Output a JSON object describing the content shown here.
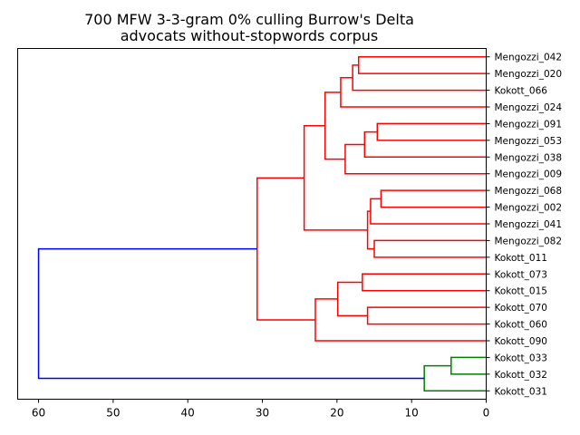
{
  "chart_data": {
    "type": "dendrogram",
    "title": "700 MFW 3-3-gram 0% culling Burrow's Delta",
    "subtitle": "advocats without-stopwords corpus",
    "xlabel": "",
    "ylabel": "",
    "x_range": [
      62.8,
      0
    ],
    "x_ticks": [
      60,
      50,
      40,
      30,
      20,
      10,
      0
    ],
    "leaf_order": [
      "Mengozzi_042",
      "Mengozzi_020",
      "Kokott_066",
      "Mengozzi_024",
      "Mengozzi_091",
      "Mengozzi_053",
      "Mengozzi_038",
      "Mengozzi_009",
      "Mengozzi_068",
      "Mengozzi_002",
      "Mengozzi_041",
      "Mengozzi_082",
      "Kokott_011",
      "Kokott_073",
      "Kokott_015",
      "Kokott_070",
      "Kokott_060",
      "Kokott_090",
      "Kokott_033",
      "Kokott_032",
      "Kokott_031"
    ],
    "merges": [
      {
        "id": "a",
        "left": "Mengozzi_042",
        "right": "Mengozzi_020",
        "distance": 17.1,
        "color": "red"
      },
      {
        "id": "b",
        "left": "a",
        "right": "Kokott_066",
        "distance": 17.9,
        "color": "red"
      },
      {
        "id": "c",
        "left": "b",
        "right": "Mengozzi_024",
        "distance": 19.5,
        "color": "red"
      },
      {
        "id": "d",
        "left": "Mengozzi_091",
        "right": "Mengozzi_053",
        "distance": 14.6,
        "color": "red"
      },
      {
        "id": "e",
        "left": "d",
        "right": "Mengozzi_038",
        "distance": 16.3,
        "color": "red"
      },
      {
        "id": "f",
        "left": "e",
        "right": "Mengozzi_009",
        "distance": 18.9,
        "color": "red"
      },
      {
        "id": "g",
        "left": "c",
        "right": "f",
        "distance": 21.6,
        "color": "red"
      },
      {
        "id": "h",
        "left": "Mengozzi_068",
        "right": "Mengozzi_002",
        "distance": 14.1,
        "color": "red"
      },
      {
        "id": "i",
        "left": "h",
        "right": "Mengozzi_041",
        "distance": 15.5,
        "color": "red"
      },
      {
        "id": "j",
        "left": "Mengozzi_082",
        "right": "Kokott_011",
        "distance": 15.0,
        "color": "red"
      },
      {
        "id": "k",
        "left": "i",
        "right": "j",
        "distance": 15.9,
        "color": "red"
      },
      {
        "id": "l",
        "left": "g",
        "right": "k",
        "distance": 24.4,
        "color": "red"
      },
      {
        "id": "m",
        "left": "Kokott_073",
        "right": "Kokott_015",
        "distance": 16.6,
        "color": "red"
      },
      {
        "id": "n",
        "left": "Kokott_070",
        "right": "Kokott_060",
        "distance": 15.9,
        "color": "red"
      },
      {
        "id": "o",
        "left": "m",
        "right": "n",
        "distance": 19.9,
        "color": "red"
      },
      {
        "id": "p",
        "left": "o",
        "right": "Kokott_090",
        "distance": 22.9,
        "color": "red"
      },
      {
        "id": "q",
        "left": "l",
        "right": "p",
        "distance": 30.7,
        "color": "red"
      },
      {
        "id": "r",
        "left": "Kokott_033",
        "right": "Kokott_032",
        "distance": 4.7,
        "color": "green"
      },
      {
        "id": "s",
        "left": "r",
        "right": "Kokott_031",
        "distance": 8.3,
        "color": "green"
      },
      {
        "id": "t",
        "left": "q",
        "right": "s",
        "distance": 60.0,
        "color": "blue"
      }
    ],
    "colors": {
      "red": "#ff0000",
      "green": "#008000",
      "blue": "#0000ff",
      "axis": "#000000"
    }
  }
}
